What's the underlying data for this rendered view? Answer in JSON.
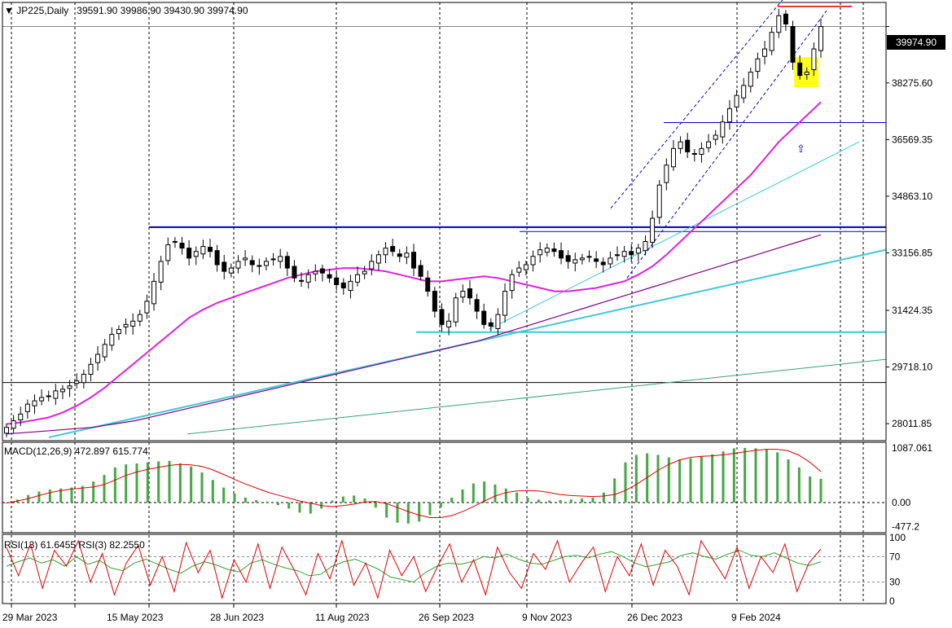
{
  "header": {
    "symbol": "JP225,Daily",
    "ohlc": "39591.90 39986.90 39430.90 39974.90"
  },
  "macd": {
    "label": "MACD(12,26,9) 472.897 615.774"
  },
  "rsi": {
    "label": "RSI(13) 61.6455  RSI(3) 82.2550"
  },
  "current_price": "39974.90",
  "colors": {
    "background": "#ffffff",
    "candle_body": "#000000",
    "ma_fast": "#e020e0",
    "ma_slow": "#800080",
    "trend_cyan": "#40c8d8",
    "trend_green": "#3ca070",
    "level_blue": "#0000c8",
    "resistance_red": "#e00000",
    "macd_hist": "#44a844",
    "macd_signal": "#e00000",
    "rsi_13": "#30a030",
    "rsi_3": "#e00000",
    "highlight": "#ffff00",
    "arrow": "#0000c8"
  },
  "chart_data": [
    {
      "type": "candlestick",
      "title": "JP225,Daily",
      "x_ticks": [
        "29 Mar 2023",
        "15 May 2023",
        "28 Jun 2023",
        "11 Aug 2023",
        "26 Sep 2023",
        "9 Nov 2023",
        "26 Dec 2023",
        "9 Feb 2024"
      ],
      "y_ticks": [
        "39974.90",
        "38275.60",
        "36569.35",
        "34863.10",
        "33156.85",
        "31424.35",
        "29718.10",
        "28011.85"
      ],
      "ylim": [
        27500,
        40700
      ],
      "grid": "vertical dashed",
      "series": [
        {
          "values": [
            27900,
            28100,
            28300,
            28600,
            28700,
            28800,
            28850,
            29000,
            29050,
            29150,
            29300,
            29500,
            29800,
            30100,
            30400,
            30700,
            30850,
            31000,
            31100,
            31300,
            31700,
            32300,
            32900,
            33400,
            33500,
            33300,
            33000,
            33200,
            33350,
            33200,
            32800,
            32600,
            32700,
            32900,
            33000,
            32800,
            32750,
            32900,
            32950,
            33050,
            32700,
            32400,
            32300,
            32500,
            32600,
            32550,
            32400,
            32200,
            32100,
            32300,
            32500,
            32600,
            32900,
            33100,
            33300,
            33200,
            33050,
            33150,
            32700,
            32450,
            32000,
            31400,
            31000,
            31100,
            31800,
            32000,
            31800,
            31400,
            31000,
            30950,
            31300,
            32000,
            32500,
            32700,
            32800,
            33050,
            33250,
            33300,
            33200,
            33000,
            32900,
            32950,
            33000,
            33050,
            32900,
            32800,
            33000,
            33100,
            33200,
            33100,
            33300,
            33500,
            34200,
            35200,
            35800,
            36300,
            36500,
            36200,
            36150,
            36300,
            36500,
            36700,
            37100,
            37500,
            37900,
            38200,
            38600,
            39000,
            39300,
            39800,
            40300,
            40050,
            38900,
            38500,
            38600,
            39300,
            39975
          ]
        },
        {
          "name": "MA fast",
          "values": [
            28000,
            28050,
            28120,
            28200,
            28350,
            28550,
            28800,
            29100,
            29450,
            29800,
            30150,
            30500,
            30850,
            31200,
            31450,
            31650,
            31800,
            31950,
            32100,
            32250,
            32400,
            32500,
            32600,
            32650,
            32700,
            32700,
            32650,
            32600,
            32500,
            32400,
            32300,
            32300,
            32350,
            32400,
            32450,
            32400,
            32300,
            32200,
            32100,
            32000,
            32000,
            32050,
            32100,
            32200,
            32300,
            32500,
            32750,
            33100,
            33500,
            33900,
            34300,
            34700,
            35100,
            35500,
            36000,
            36500,
            36900,
            37300,
            37700
          ]
        },
        {
          "name": "MA slow",
          "values": [
            27700,
            27750,
            27800,
            27850,
            27900,
            28000,
            28100,
            28250,
            28400,
            28550,
            28700,
            28850,
            29000,
            29150,
            29300,
            29450,
            29600,
            29750,
            29900,
            30050,
            30200,
            30350,
            30500,
            30700,
            30900,
            31100,
            31300,
            31500,
            31700,
            31900,
            32100,
            32300,
            32500,
            32700,
            32900,
            33100,
            33300,
            33500,
            33700
          ]
        }
      ]
    },
    {
      "type": "bar",
      "title": "MACD(12,26,9) 472.897 615.774",
      "y_ticks": [
        "1087.061",
        "0.00",
        "-477.2"
      ],
      "ylim": [
        -600,
        1200
      ],
      "series": [
        {
          "name": "MACD(12,26,9)",
          "values": [
            0,
            60,
            150,
            220,
            260,
            280,
            300,
            330,
            420,
            550,
            700,
            760,
            780,
            800,
            820,
            830,
            780,
            720,
            600,
            450,
            300,
            180,
            100,
            50,
            20,
            -50,
            -120,
            -200,
            -220,
            -120,
            40,
            120,
            140,
            80,
            -100,
            -300,
            -400,
            -420,
            -380,
            -250,
            -100,
            100,
            260,
            380,
            420,
            360,
            280,
            200,
            100,
            60,
            40,
            50,
            60,
            80,
            100,
            200,
            480,
            800,
            950,
            980,
            950,
            900,
            860,
            880,
            920,
            960,
            1020,
            1080,
            1087,
            1080,
            1060,
            1000,
            860,
            700,
            520,
            473
          ]
        },
        {
          "name": "Signal",
          "values": [
            -10,
            30,
            80,
            140,
            200,
            240,
            270,
            290,
            310,
            360,
            450,
            540,
            610,
            660,
            700,
            740,
            760,
            750,
            720,
            650,
            560,
            460,
            370,
            290,
            210,
            150,
            90,
            30,
            -10,
            -60,
            -80,
            -60,
            -30,
            10,
            20,
            -20,
            -100,
            -180,
            -250,
            -300,
            -300,
            -260,
            -180,
            -80,
            30,
            130,
            200,
            230,
            240,
            230,
            200,
            160,
            140,
            130,
            120,
            130,
            160,
            240,
            360,
            500,
            640,
            760,
            850,
            900,
            920,
            930,
            950,
            980,
            1010,
            1040,
            1060,
            1060,
            1030,
            940,
            800,
            616
          ]
        }
      ]
    },
    {
      "type": "line",
      "title": "RSI(13) 61.6455  RSI(3) 82.2550",
      "y_ticks": [
        "100",
        "70",
        "30",
        "0"
      ],
      "ylim": [
        0,
        100
      ],
      "series": [
        {
          "name": "RSI(13)",
          "values": [
            55,
            62,
            68,
            60,
            65,
            55,
            70,
            58,
            64,
            52,
            48,
            60,
            66,
            58,
            50,
            44,
            55,
            62,
            57,
            50,
            46,
            60,
            65,
            58,
            52,
            48,
            40,
            42,
            55,
            62,
            66,
            58,
            50,
            38,
            34,
            30,
            45,
            55,
            60,
            58,
            62,
            70,
            68,
            74,
            66,
            60,
            58,
            64,
            70,
            72,
            68,
            74,
            78,
            70,
            60,
            54,
            58,
            62,
            72,
            76,
            70,
            66,
            74,
            80,
            72,
            70,
            76,
            68,
            60,
            56,
            62
          ]
        },
        {
          "name": "RSI(3)",
          "values": [
            85,
            40,
            90,
            20,
            80,
            55,
            95,
            30,
            75,
            10,
            60,
            88,
            25,
            70,
            15,
            92,
            45,
            80,
            5,
            65,
            30,
            90,
            20,
            85,
            50,
            10,
            75,
            35,
            95,
            25,
            60,
            5,
            80,
            40,
            70,
            15,
            55,
            90,
            30,
            65,
            10,
            85,
            45,
            20,
            75,
            50,
            95,
            30,
            60,
            85,
            15,
            70,
            40,
            90,
            25,
            80,
            55,
            10,
            95,
            65,
            35,
            85,
            20,
            70,
            45,
            90,
            15,
            60,
            82
          ]
        }
      ]
    }
  ]
}
